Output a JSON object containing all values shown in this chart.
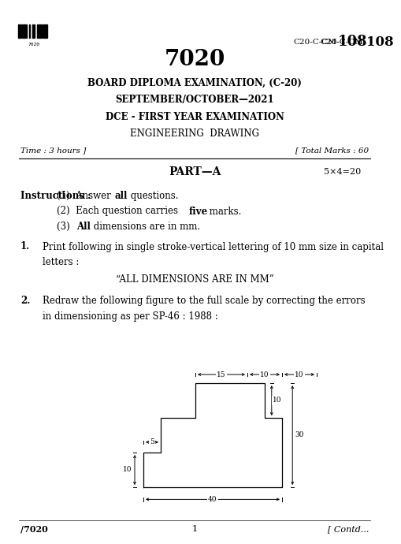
{
  "bg_color": "#ffffff",
  "barcode_text": "7020",
  "code_label": "C20-C-CM-",
  "code_number": "108",
  "exam_number": "7020",
  "line1": "BOARD DIPLOMA EXAMINATION, (C-20)",
  "line2": "SEPTEMBER/OCTOBER—2021",
  "line3": "DCE - FIRST YEAR EXAMINATION",
  "line4": "ENGINEERING  DRAWING",
  "time_label": "Time : 3 hours ]",
  "marks_label": "[ Total Marks : 60",
  "part_label": "PART—A",
  "part_marks": "5×4=20",
  "instructions_label": "Instructions :",
  "q1_num": "1.",
  "q1_text1": "Print following in single stroke-vertical lettering of 10 mm size in capital",
  "q1_text2": "letters :",
  "q1_quote": "“ALL DIMENSIONS ARE IN MM”",
  "q2_num": "2.",
  "q2_text1": "Redraw the following figure to the full scale by correcting the errors",
  "q2_text2": "in dimensioning as per SP-46 : 1988 :",
  "footer_left": "/7020",
  "footer_center": "1",
  "footer_right": "[ Contd...",
  "shape_x": [
    0,
    0,
    5,
    5,
    15,
    15,
    35,
    35,
    40,
    40,
    0
  ],
  "shape_y": [
    0,
    10,
    10,
    20,
    20,
    30,
    30,
    20,
    20,
    0,
    0
  ]
}
